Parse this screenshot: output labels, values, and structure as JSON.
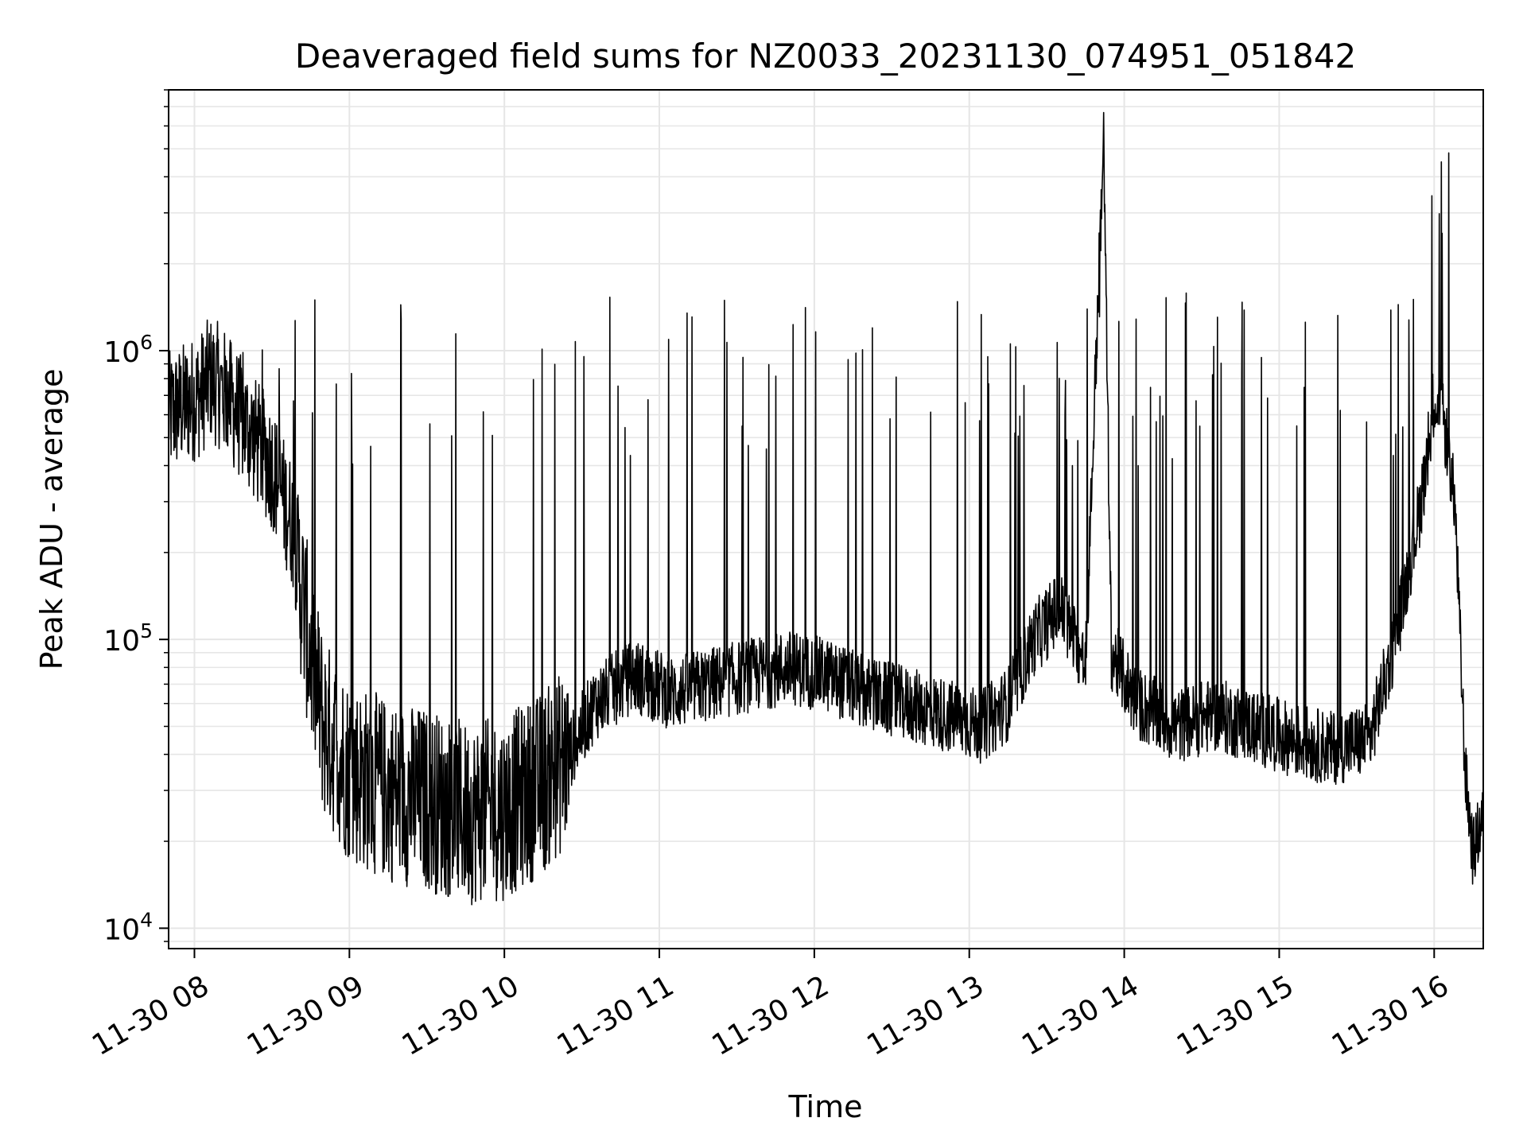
{
  "chart_data": {
    "type": "line",
    "title": "Deaveraged field sums for NZ0033_20231130_074951_051842",
    "xlabel": "Time",
    "ylabel": "Peak ADU - average",
    "yscale": "log",
    "ylim": [
      8500,
      8000000
    ],
    "xlim": [
      "2023-11-30 07:50",
      "2023-11-30 16:19"
    ],
    "grid": true,
    "colors": {
      "line": "#000000",
      "grid": "#e6e6e6",
      "frame": "#000000"
    },
    "x_ticks": [
      {
        "value": "2023-11-30 08:00",
        "label": "11-30 08"
      },
      {
        "value": "2023-11-30 09:00",
        "label": "11-30 09"
      },
      {
        "value": "2023-11-30 10:00",
        "label": "11-30 10"
      },
      {
        "value": "2023-11-30 11:00",
        "label": "11-30 11"
      },
      {
        "value": "2023-11-30 12:00",
        "label": "11-30 12"
      },
      {
        "value": "2023-11-30 13:00",
        "label": "11-30 13"
      },
      {
        "value": "2023-11-30 14:00",
        "label": "11-30 14"
      },
      {
        "value": "2023-11-30 15:00",
        "label": "11-30 15"
      },
      {
        "value": "2023-11-30 16:00",
        "label": "11-30 16"
      }
    ],
    "y_ticks": [
      {
        "value": 10000,
        "base": "10",
        "exp": "4"
      },
      {
        "value": 100000,
        "base": "10",
        "exp": "5"
      },
      {
        "value": 1000000,
        "base": "10",
        "exp": "6"
      }
    ],
    "series": [
      {
        "x": [
          "2023-11-30 07:50",
          "2023-11-30 07:56",
          "2023-11-30 08:02",
          "2023-11-30 08:06",
          "2023-11-30 08:10",
          "2023-11-30 08:20",
          "2023-11-30 08:30",
          "2023-11-30 08:38",
          "2023-11-30 08:44",
          "2023-11-30 08:50",
          "2023-11-30 09:00",
          "2023-11-30 09:15",
          "2023-11-30 09:30",
          "2023-11-30 09:45",
          "2023-11-30 10:00",
          "2023-11-30 10:15",
          "2023-11-30 10:25",
          "2023-11-30 10:35",
          "2023-11-30 10:50",
          "2023-11-30 11:05",
          "2023-11-30 11:20",
          "2023-11-30 11:35",
          "2023-11-30 11:50",
          "2023-11-30 12:05",
          "2023-11-30 12:20",
          "2023-11-30 12:35",
          "2023-11-30 12:50",
          "2023-11-30 13:05",
          "2023-11-30 13:15",
          "2023-11-30 13:25",
          "2023-11-30 13:35",
          "2023-11-30 13:45",
          "2023-11-30 13:52",
          "2023-11-30 13:55",
          "2023-11-30 14:05",
          "2023-11-30 14:20",
          "2023-11-30 14:35",
          "2023-11-30 14:50",
          "2023-11-30 15:05",
          "2023-11-30 15:20",
          "2023-11-30 15:35",
          "2023-11-30 15:45",
          "2023-11-30 15:55",
          "2023-11-30 16:00",
          "2023-11-30 16:04",
          "2023-11-30 16:08",
          "2023-11-30 16:12",
          "2023-11-30 16:15",
          "2023-11-30 16:19"
        ],
        "y": [
          600000,
          650000,
          700000,
          800000,
          750000,
          550000,
          400000,
          250000,
          100000,
          50000,
          35000,
          30000,
          28000,
          25000,
          26000,
          32000,
          40000,
          60000,
          75000,
          65000,
          70000,
          75000,
          80000,
          75000,
          65000,
          60000,
          55000,
          50000,
          60000,
          100000,
          130000,
          80000,
          5500000,
          90000,
          60000,
          50000,
          55000,
          50000,
          45000,
          42000,
          45000,
          100000,
          300000,
          700000,
          550000,
          300000,
          35000,
          18000,
          25000
        ]
      }
    ]
  }
}
